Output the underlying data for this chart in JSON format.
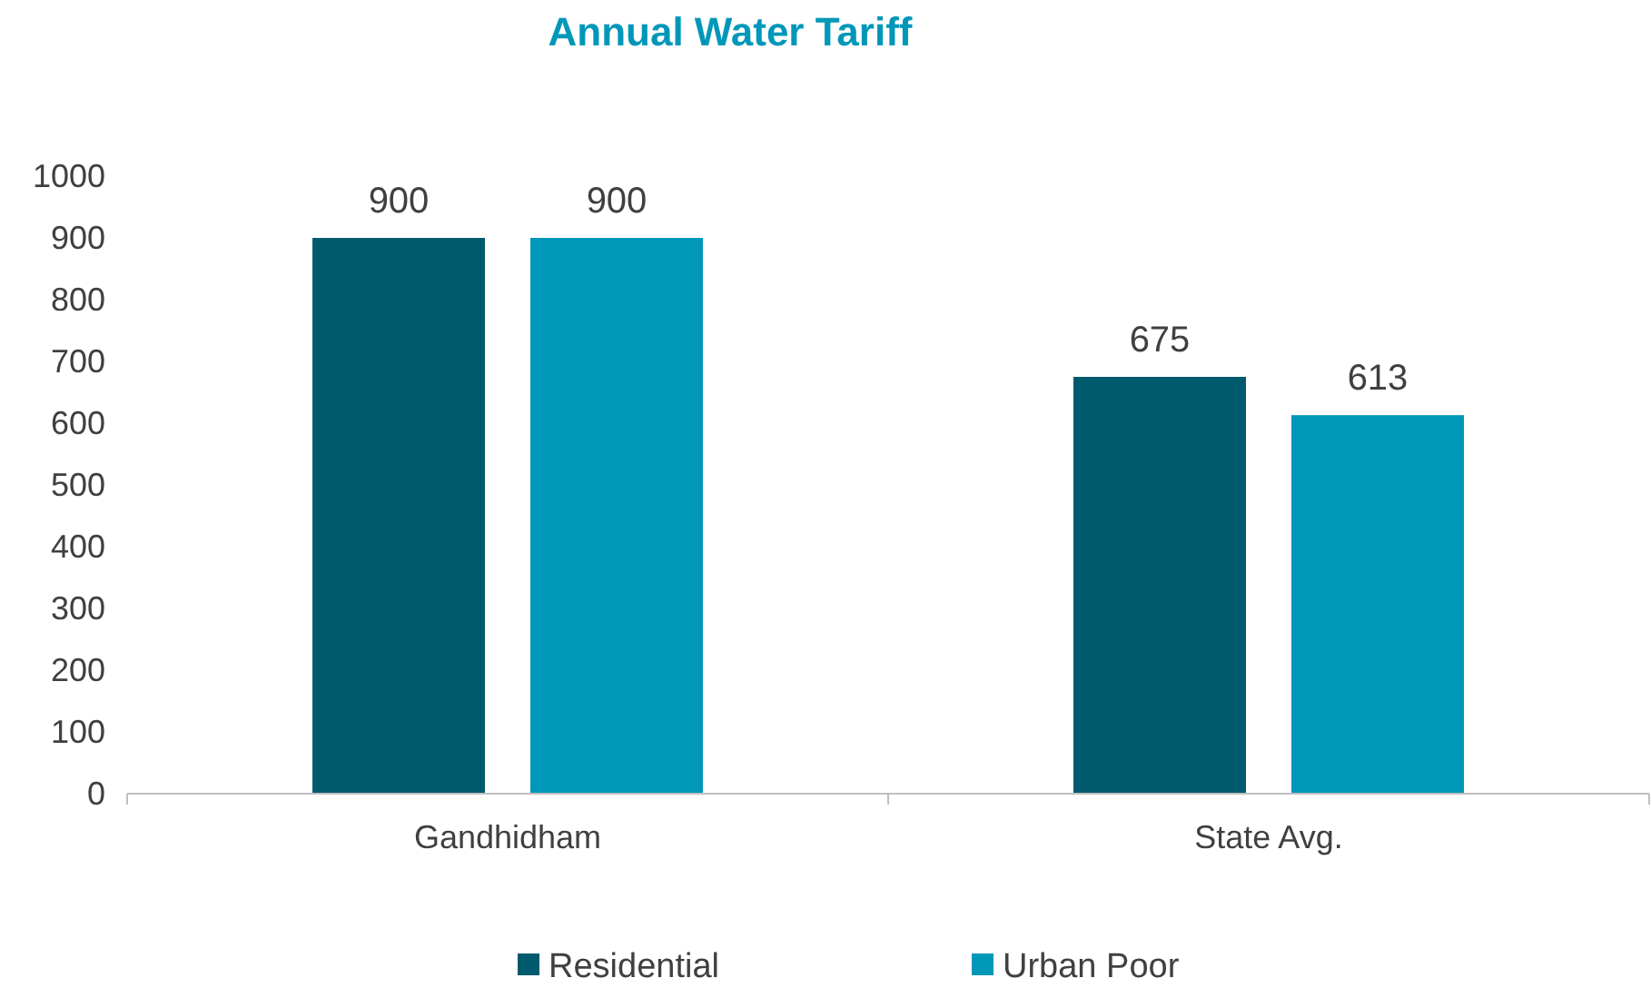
{
  "chart_data": {
    "type": "bar",
    "title": "Annual Water Tariff",
    "categories": [
      "Gandhidham",
      "State Avg."
    ],
    "series": [
      {
        "name": "Residential",
        "color": "#005a6e",
        "values": [
          900,
          675
        ]
      },
      {
        "name": "Urban Poor",
        "color": "#0097b9",
        "values": [
          900,
          613
        ]
      }
    ],
    "ylim": [
      0,
      1000
    ],
    "yticks": [
      0,
      100,
      200,
      300,
      400,
      500,
      600,
      700,
      800,
      900,
      1000
    ],
    "data_labels": true,
    "legend": "bottom",
    "grid": false
  }
}
